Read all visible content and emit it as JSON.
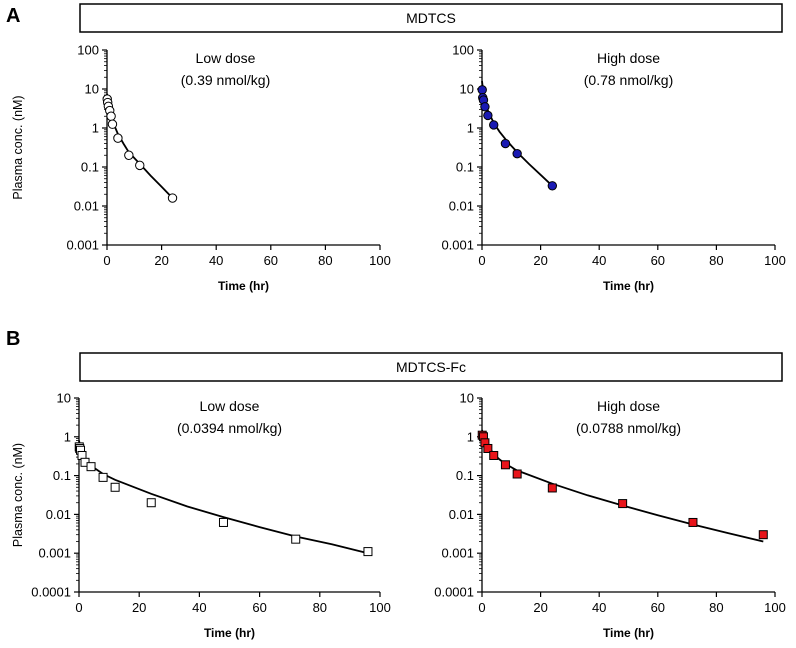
{
  "figure": {
    "panel_a": {
      "letter": "A",
      "banner": "MDTCS"
    },
    "panel_b": {
      "letter": "B",
      "banner": "MDTCS-Fc"
    }
  },
  "chart_data": [
    {
      "type": "scatter",
      "id": "a_low",
      "title": "MDTCS",
      "annotation": [
        "Low dose",
        "(0.39 nmol/kg)"
      ],
      "xlabel": "Time (hr)",
      "ylabel": "Plasma conc. (nM)",
      "xlim": [
        0,
        100
      ],
      "ylim": [
        0.001,
        100
      ],
      "yscale": "log",
      "xticks": [
        "0",
        "20",
        "40",
        "60",
        "80",
        "100"
      ],
      "yticks": [
        "0.001",
        "0.01",
        "0.1",
        "1",
        "10",
        "100"
      ],
      "marker": "circle",
      "color": "#ffffff",
      "points": [
        [
          0.08,
          5.5
        ],
        [
          0.25,
          4.5
        ],
        [
          0.5,
          3.6
        ],
        [
          1,
          2.8
        ],
        [
          1.5,
          2.0
        ],
        [
          2,
          1.25
        ],
        [
          4,
          0.55
        ],
        [
          8,
          0.2
        ],
        [
          12,
          0.11
        ],
        [
          24,
          0.016
        ]
      ],
      "fit": [
        [
          0,
          7.5
        ],
        [
          1,
          2.8
        ],
        [
          2,
          1.5
        ],
        [
          4,
          0.7
        ],
        [
          6,
          0.4
        ],
        [
          8,
          0.24
        ],
        [
          12,
          0.12
        ],
        [
          16,
          0.06
        ],
        [
          20,
          0.031
        ],
        [
          24,
          0.016
        ]
      ]
    },
    {
      "type": "scatter",
      "id": "a_high",
      "title": "MDTCS",
      "annotation": [
        "High dose",
        "(0.78 nmol/kg)"
      ],
      "xlabel": "Time (hr)",
      "ylabel": "",
      "xlim": [
        0,
        100
      ],
      "ylim": [
        0.001,
        100
      ],
      "yscale": "log",
      "xticks": [
        "0",
        "20",
        "40",
        "60",
        "80",
        "100"
      ],
      "yticks": [
        "0.001",
        "0.01",
        "0.1",
        "1",
        "10",
        "100"
      ],
      "marker": "circle",
      "color": "#1a1ab3",
      "points": [
        [
          0.08,
          9.5
        ],
        [
          0.25,
          6
        ],
        [
          0.5,
          5.2
        ],
        [
          1,
          3.5
        ],
        [
          2,
          2.1
        ],
        [
          4,
          1.2
        ],
        [
          8,
          0.4
        ],
        [
          12,
          0.22
        ],
        [
          24,
          0.033
        ]
      ],
      "fit": [
        [
          0,
          16
        ],
        [
          0.5,
          7.5
        ],
        [
          1,
          4.8
        ],
        [
          2,
          2.8
        ],
        [
          4,
          1.35
        ],
        [
          6,
          0.8
        ],
        [
          8,
          0.52
        ],
        [
          12,
          0.24
        ],
        [
          16,
          0.12
        ],
        [
          20,
          0.063
        ],
        [
          24,
          0.033
        ]
      ]
    },
    {
      "type": "scatter",
      "id": "b_low",
      "title": "MDTCS-Fc",
      "annotation": [
        "Low dose",
        "(0.0394 nmol/kg)"
      ],
      "xlabel": "Time (hr)",
      "ylabel": "Plasma conc. (nM)",
      "xlim": [
        0,
        100
      ],
      "ylim": [
        0.0001,
        10
      ],
      "yscale": "log",
      "xticks": [
        "0",
        "20",
        "40",
        "60",
        "80",
        "100"
      ],
      "yticks": [
        "0.0001",
        "0.001",
        "0.01",
        "0.1",
        "1",
        "10"
      ],
      "marker": "square",
      "color": "#ffffff",
      "points": [
        [
          0.08,
          0.55
        ],
        [
          0.25,
          0.5
        ],
        [
          0.5,
          0.45
        ],
        [
          1,
          0.33
        ],
        [
          2,
          0.22
        ],
        [
          4,
          0.17
        ],
        [
          8,
          0.09
        ],
        [
          12,
          0.05
        ],
        [
          24,
          0.02
        ],
        [
          48,
          0.0062
        ],
        [
          72,
          0.0023
        ],
        [
          96,
          0.0011
        ]
      ],
      "fit": [
        [
          0,
          0.8
        ],
        [
          0.5,
          0.5
        ],
        [
          1,
          0.38
        ],
        [
          2,
          0.27
        ],
        [
          4,
          0.18
        ],
        [
          6,
          0.14
        ],
        [
          8,
          0.11
        ],
        [
          12,
          0.078
        ],
        [
          24,
          0.034
        ],
        [
          36,
          0.016
        ],
        [
          48,
          0.0085
        ],
        [
          60,
          0.0047
        ],
        [
          72,
          0.0027
        ],
        [
          84,
          0.0017
        ],
        [
          96,
          0.001
        ]
      ]
    },
    {
      "type": "scatter",
      "id": "b_high",
      "title": "MDTCS-Fc",
      "annotation": [
        "High dose",
        "(0.0788 nmol/kg)"
      ],
      "xlabel": "Time (hr)",
      "ylabel": "",
      "xlim": [
        0,
        100
      ],
      "ylim": [
        0.0001,
        10
      ],
      "yscale": "log",
      "xticks": [
        "0",
        "20",
        "40",
        "60",
        "80",
        "100"
      ],
      "yticks": [
        "0.0001",
        "0.001",
        "0.01",
        "0.1",
        "1",
        "10"
      ],
      "marker": "square",
      "color": "#e8141a",
      "points": [
        [
          0.08,
          1.1
        ],
        [
          0.5,
          1.0
        ],
        [
          1,
          0.7
        ],
        [
          2,
          0.5
        ],
        [
          4,
          0.33
        ],
        [
          8,
          0.19
        ],
        [
          12,
          0.11
        ],
        [
          24,
          0.048
        ],
        [
          48,
          0.019
        ],
        [
          72,
          0.0062
        ],
        [
          96,
          0.003
        ]
      ],
      "fit": [
        [
          0,
          1.5
        ],
        [
          0.5,
          1.1
        ],
        [
          1,
          0.85
        ],
        [
          2,
          0.6
        ],
        [
          4,
          0.36
        ],
        [
          6,
          0.26
        ],
        [
          8,
          0.2
        ],
        [
          12,
          0.135
        ],
        [
          24,
          0.062
        ],
        [
          36,
          0.031
        ],
        [
          48,
          0.017
        ],
        [
          60,
          0.0095
        ],
        [
          72,
          0.0055
        ],
        [
          84,
          0.0033
        ],
        [
          96,
          0.002
        ]
      ]
    }
  ]
}
